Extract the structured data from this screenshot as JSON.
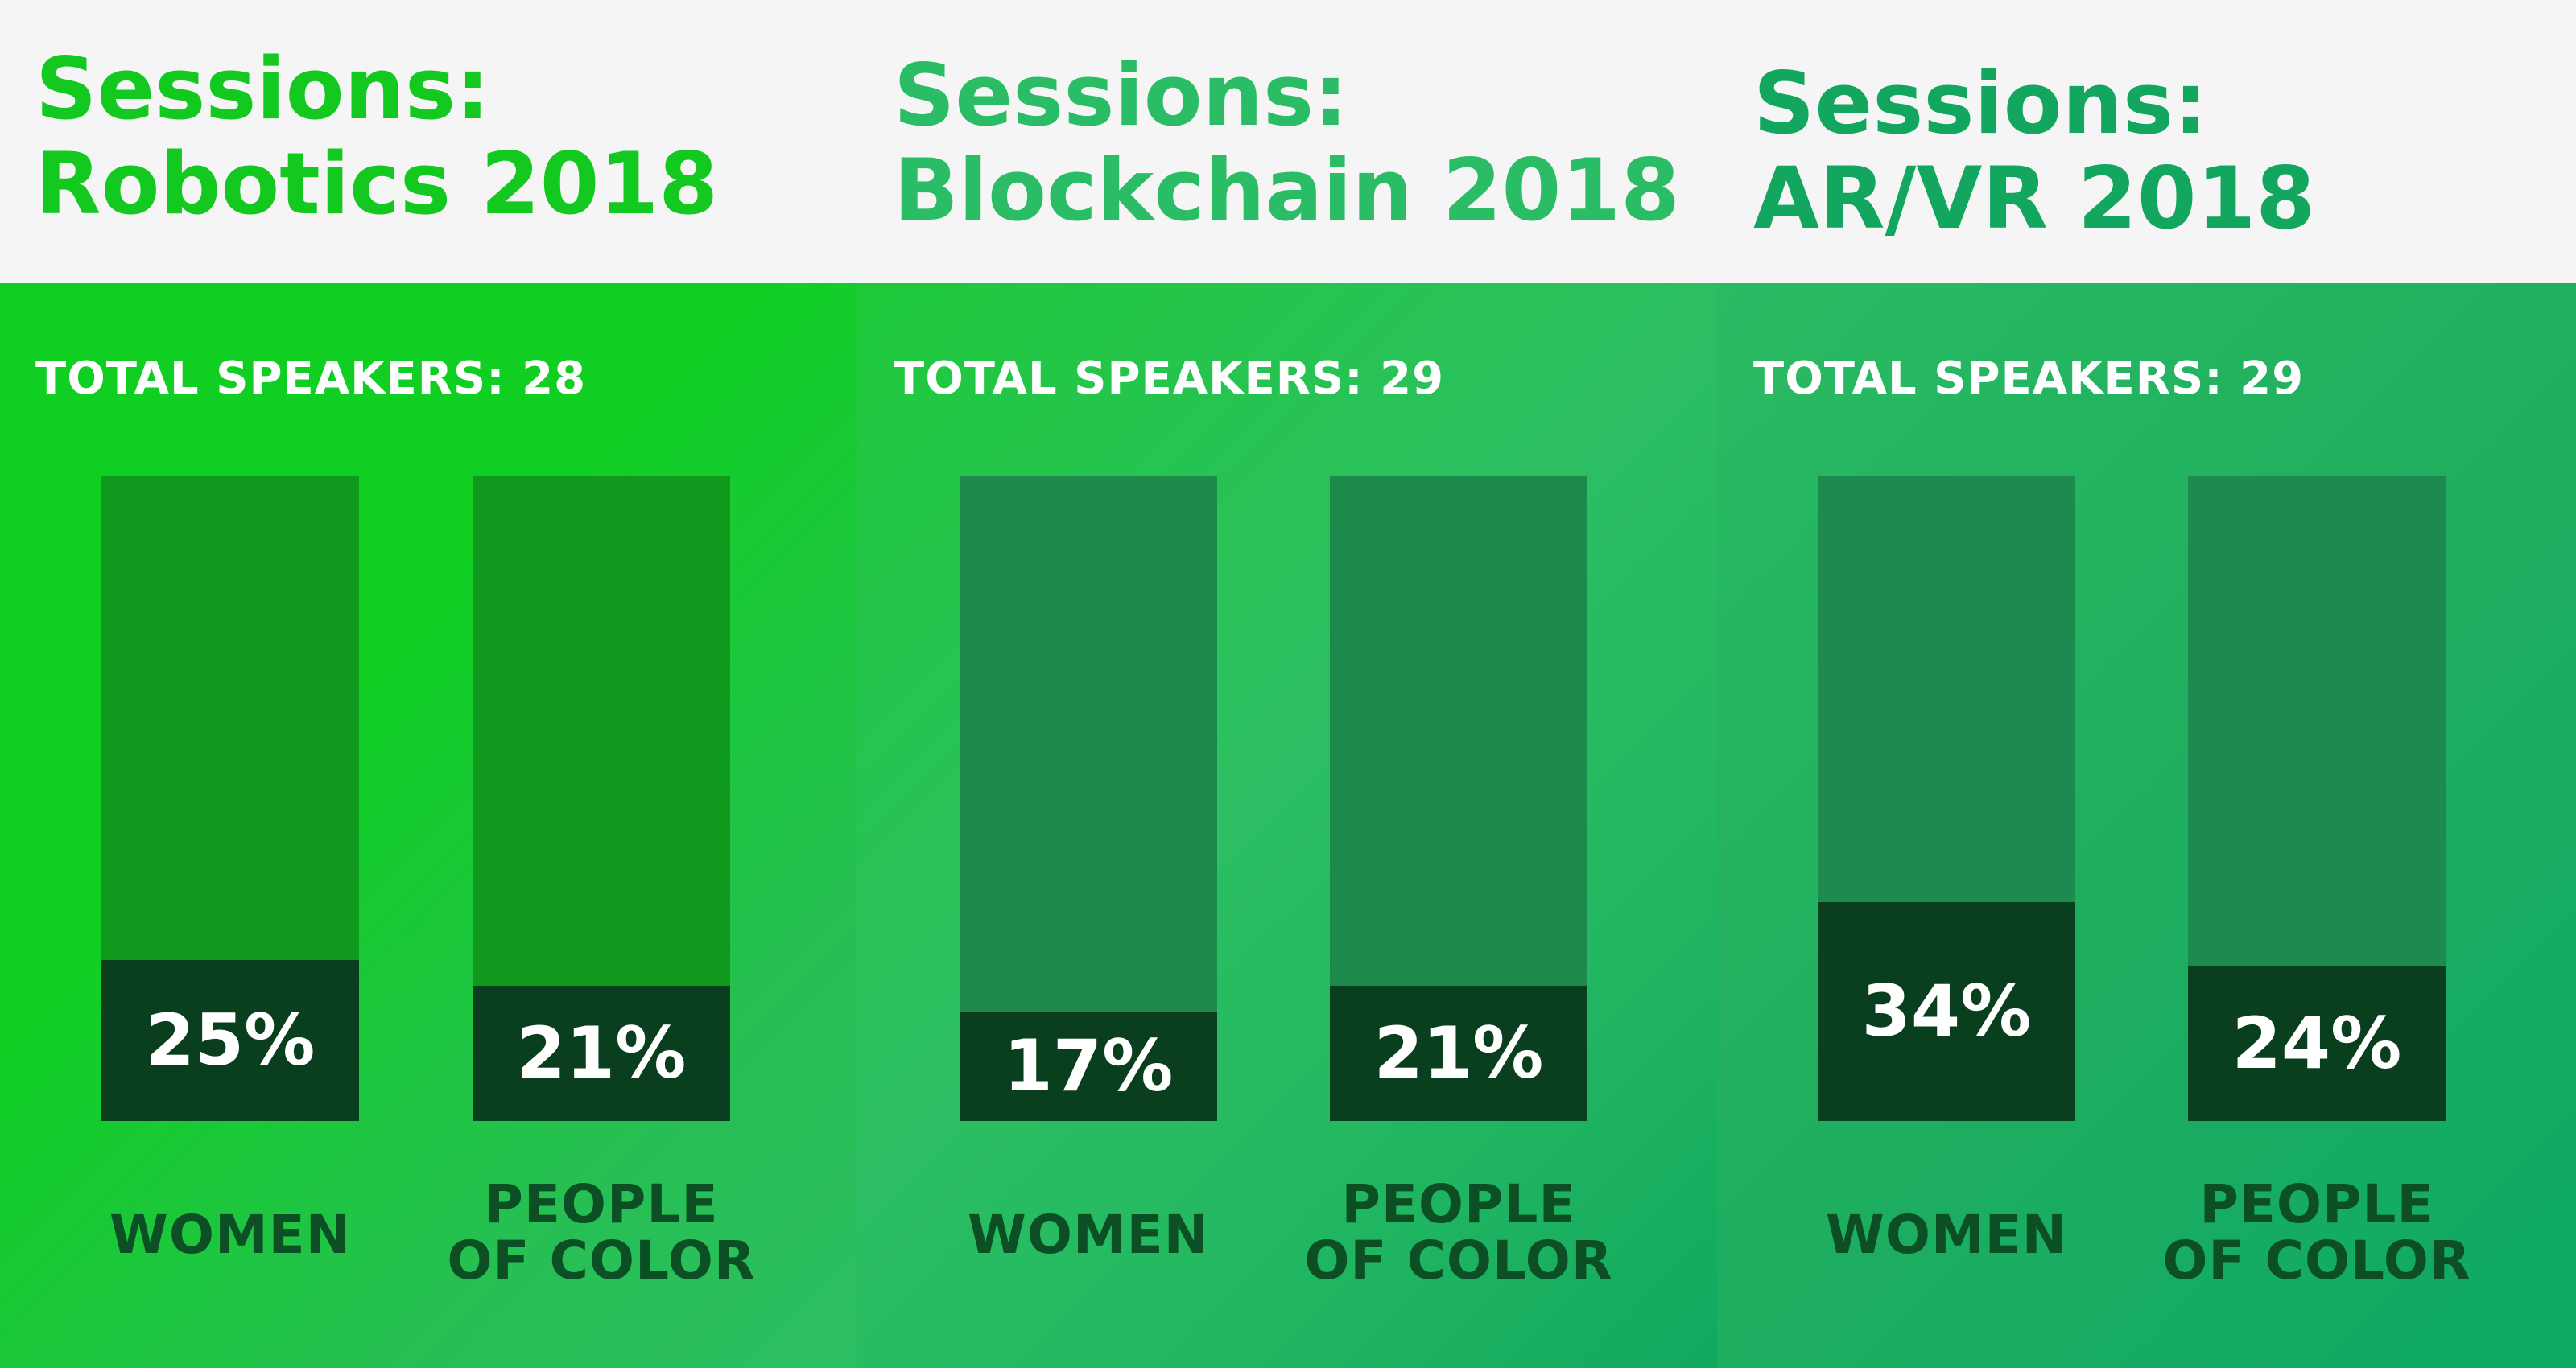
{
  "chart_data": [
    {
      "type": "bar",
      "title": "Sessions: Robotics 2018",
      "title_lines": [
        "Sessions:",
        "Robotics 2018"
      ],
      "subtitle": "TOTAL SPEAKERS: 28",
      "total_speakers": 28,
      "ylim": [
        0,
        100
      ],
      "categories": [
        "WOMEN",
        "PEOPLE OF COLOR"
      ],
      "category_lines": [
        [
          "WOMEN"
        ],
        [
          "PEOPLE",
          "OF COLOR"
        ]
      ],
      "values": [
        25,
        21
      ],
      "value_labels": [
        "25%",
        "21%"
      ],
      "title_color": "#13c91f",
      "bar_track_color": "#0f9a1d"
    },
    {
      "type": "bar",
      "title": "Sessions: Blockchain 2018",
      "title_lines": [
        "Sessions:",
        "Blockchain 2018"
      ],
      "subtitle": "TOTAL SPEAKERS: 29",
      "total_speakers": 29,
      "ylim": [
        0,
        100
      ],
      "categories": [
        "WOMEN",
        "PEOPLE OF COLOR"
      ],
      "category_lines": [
        [
          "WOMEN"
        ],
        [
          "PEOPLE",
          "OF COLOR"
        ]
      ],
      "values": [
        17,
        21
      ],
      "value_labels": [
        "17%",
        "21%"
      ],
      "title_color": "#2bbd65",
      "bar_track_color": "#1d8a4c"
    },
    {
      "type": "bar",
      "title": "Sessions: AR/VR 2018",
      "title_lines": [
        "Sessions:",
        "AR/VR 2018"
      ],
      "subtitle": "TOTAL SPEAKERS: 29",
      "total_speakers": 29,
      "ylim": [
        0,
        100
      ],
      "categories": [
        "WOMEN",
        "PEOPLE OF COLOR"
      ],
      "category_lines": [
        [
          "WOMEN"
        ],
        [
          "PEOPLE",
          "OF COLOR"
        ]
      ],
      "values": [
        34,
        24
      ],
      "value_labels": [
        "34%",
        "24%"
      ],
      "title_color": "#12a65f",
      "bar_track_color": "#1d8a4f"
    }
  ],
  "colors": {
    "header_background": "#f5f5f5",
    "bar_fill": "#093f1e",
    "value_text": "#ffffff",
    "category_text": "#0d4f25",
    "total_text": "#ffffff"
  }
}
